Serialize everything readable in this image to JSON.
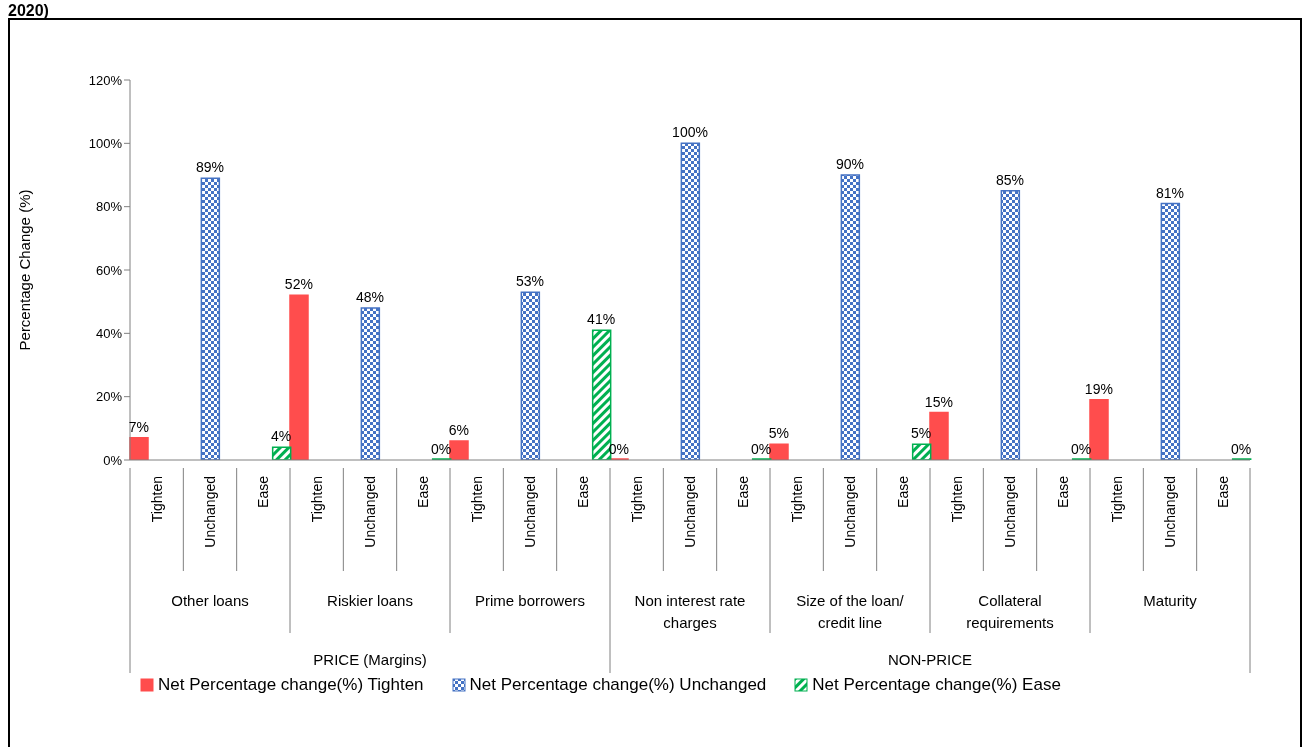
{
  "chart_data": {
    "type": "bar",
    "title": "2020)",
    "ylabel": "Percentage  Change (%)",
    "categories": [
      "Tighten",
      "Unchanged",
      "Ease",
      "Tighten",
      "Unchanged",
      "Ease",
      "Tighten",
      "Unchanged",
      "Ease",
      "Tighten",
      "Unchanged",
      "Ease",
      "Tighten",
      "Unchanged",
      "Ease",
      "Tighten",
      "Unchanged",
      "Ease",
      "Tighten",
      "Unchanged",
      "Ease"
    ],
    "series": [
      {
        "name": "Net Percentage change(%) Tighten",
        "color": "#ff4d4d",
        "values": [
          7,
          null,
          null,
          52,
          null,
          null,
          6,
          null,
          null,
          0,
          null,
          null,
          5,
          null,
          null,
          15,
          null,
          null,
          19,
          null,
          null
        ],
        "value_labels": [
          "7%",
          null,
          null,
          "52%",
          null,
          null,
          "6%",
          null,
          null,
          "0%",
          null,
          null,
          "5%",
          null,
          null,
          "15%",
          null,
          null,
          "19%",
          null,
          null
        ]
      },
      {
        "name": "Net Percentage change(%) Unchanged",
        "color": "#4472c4",
        "values": [
          null,
          89,
          null,
          null,
          48,
          null,
          null,
          53,
          null,
          null,
          100,
          null,
          null,
          90,
          null,
          null,
          85,
          null,
          null,
          81,
          null
        ],
        "value_labels": [
          null,
          "89%",
          null,
          null,
          "48%",
          null,
          null,
          "53%",
          null,
          null,
          "100%",
          null,
          null,
          "90%",
          null,
          null,
          "85%",
          null,
          null,
          "81%",
          null
        ]
      },
      {
        "name": "Net Percentage change(%) Ease",
        "color": "#00b050",
        "values": [
          null,
          null,
          4,
          null,
          null,
          0,
          null,
          null,
          41,
          null,
          null,
          0,
          null,
          null,
          5,
          null,
          null,
          0,
          null,
          null,
          0
        ],
        "value_labels": [
          null,
          null,
          "4%",
          null,
          null,
          "0%",
          null,
          null,
          "41%",
          null,
          null,
          "0%",
          null,
          null,
          "5%",
          null,
          null,
          "0%",
          null,
          null,
          "0%"
        ]
      }
    ],
    "ylim": [
      0,
      120
    ],
    "yticks": [
      {
        "value": 0,
        "label": "0%"
      },
      {
        "value": 20,
        "label": "20%"
      },
      {
        "value": 40,
        "label": "40%"
      },
      {
        "value": 60,
        "label": "60%"
      },
      {
        "value": 80,
        "label": "80%"
      },
      {
        "value": 100,
        "label": "100%"
      },
      {
        "value": 120,
        "label": "120%"
      }
    ],
    "annotations": [
      "Other loans",
      "Riskier loans",
      "Prime borrowers",
      "Non interest rate charges",
      "Size of the loan/ credit line",
      "Collateral requirements",
      "Maturity",
      "PRICE (Margins)",
      "NON-PRICE"
    ],
    "grid": false,
    "legend": "bottom"
  }
}
